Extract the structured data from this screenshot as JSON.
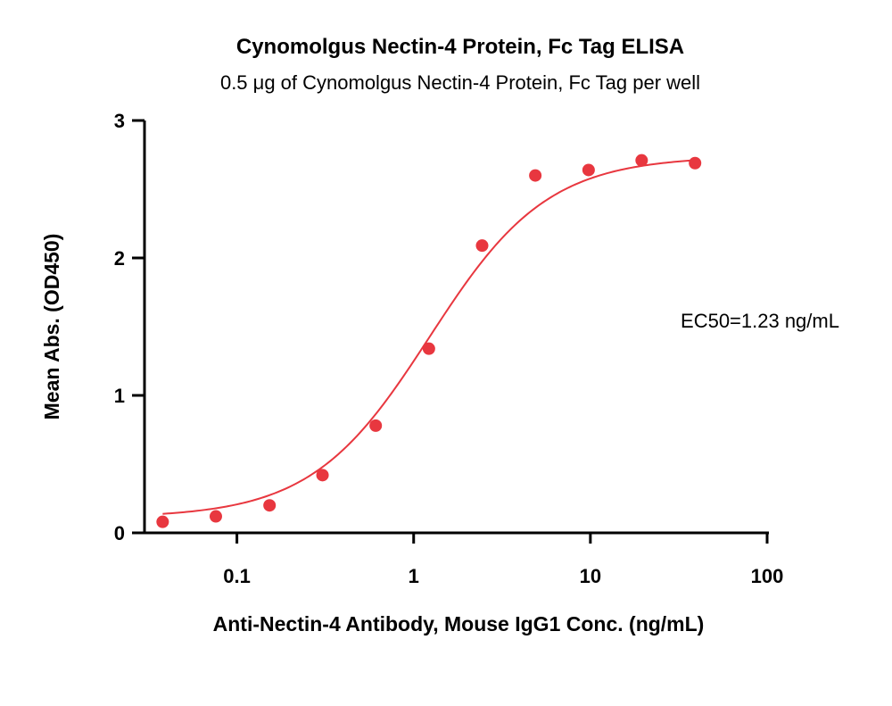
{
  "chart_data": {
    "type": "scatter",
    "title": "Cynomolgus Nectin-4 Protein, Fc Tag ELISA",
    "subtitle": "0.5 μg of Cynomolgus Nectin-4 Protein, Fc Tag per well",
    "xlabel": "Anti-Nectin-4 Antibody, Mouse IgG1 Conc. (ng/mL)",
    "ylabel": "Mean Abs. (OD450)",
    "x_scale": "log",
    "xlim": [
      0.03,
      100
    ],
    "ylim": [
      0,
      3
    ],
    "x_ticks": [
      {
        "value": 0.1,
        "label": "0.1"
      },
      {
        "value": 1,
        "label": "1"
      },
      {
        "value": 10,
        "label": "10"
      },
      {
        "value": 100,
        "label": "100"
      }
    ],
    "y_ticks": [
      {
        "value": 0,
        "label": "0"
      },
      {
        "value": 1,
        "label": "1"
      },
      {
        "value": 2,
        "label": "2"
      },
      {
        "value": 3,
        "label": "3"
      }
    ],
    "grid": false,
    "series": [
      {
        "color": "#e8373f",
        "x": [
          0.038,
          0.076,
          0.153,
          0.305,
          0.61,
          1.22,
          2.44,
          4.88,
          9.77,
          19.5,
          39.1
        ],
        "y": [
          0.08,
          0.12,
          0.2,
          0.42,
          0.78,
          1.34,
          2.09,
          2.6,
          2.64,
          2.71,
          2.69
        ]
      }
    ],
    "fit_curve": {
      "type": "4PL",
      "color": "#e8373f",
      "bottom": 0.11,
      "top": 2.74,
      "ec50": 1.23,
      "hill": 1.3
    },
    "annotations": [
      {
        "text": "EC50=1.23 ng/mL"
      }
    ]
  }
}
